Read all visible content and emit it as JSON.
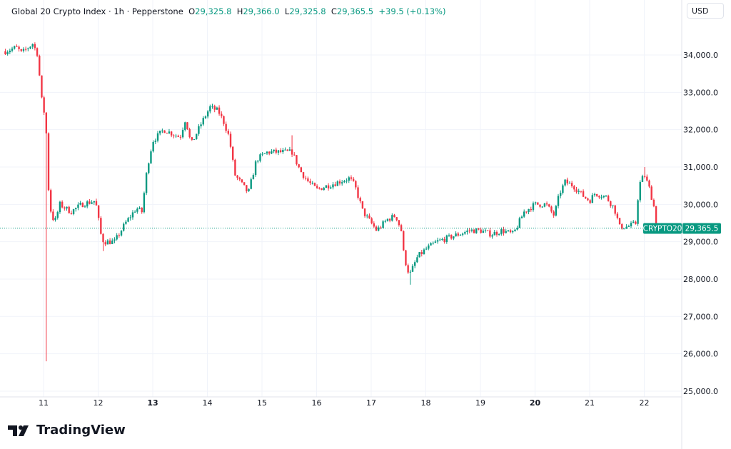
{
  "header": {
    "symbol": "Global 20 Crypto Index · 1h · Pepperstone",
    "o_label": "O",
    "o": "29,325.8",
    "h_label": "H",
    "h": "29,366.0",
    "l_label": "L",
    "l": "29,325.8",
    "c_label": "C",
    "c": "29,365.5",
    "change": "+39.5 (+0.13%)"
  },
  "currency": "USD",
  "logo_text": "TradingView",
  "colors": {
    "up": "#089981",
    "down": "#f23645",
    "grid": "#f0f3fa"
  },
  "chart_data": {
    "type": "candlestick",
    "timeframe": "1h",
    "ylim": [
      24900,
      34700
    ],
    "yticks": [
      25000,
      26000,
      27000,
      28000,
      29000,
      30000,
      31000,
      32000,
      33000,
      34000
    ],
    "ytick_labels": [
      "25,000.0",
      "26,000.0",
      "27,000.0",
      "28,000.0",
      "29,000.0",
      "30,000.0",
      "31,000.0",
      "32,000.0",
      "33,000.0",
      "34,000.0"
    ],
    "xlim": [
      10.3,
      22.7
    ],
    "xticks": [
      11,
      12,
      13,
      14,
      15,
      16,
      17,
      18,
      19,
      20,
      21,
      22
    ],
    "xtick_labels": [
      "11",
      "12",
      "13",
      "14",
      "15",
      "16",
      "17",
      "18",
      "19",
      "20",
      "21",
      "22"
    ],
    "bold_xticks": [
      "13",
      "20"
    ],
    "last_price": 29365.5,
    "last_price_label": "29,365.5",
    "last_symbol": "CRYPTO20",
    "close_path": [
      [
        10.3,
        34100
      ],
      [
        10.5,
        34200
      ],
      [
        10.6,
        34050
      ],
      [
        10.8,
        34300
      ],
      [
        10.9,
        34000
      ],
      [
        10.95,
        32900
      ],
      [
        11.0,
        32600
      ],
      [
        11.05,
        31900
      ],
      [
        11.07,
        31500
      ],
      [
        11.1,
        30000
      ],
      [
        11.2,
        29500
      ],
      [
        11.3,
        30000
      ],
      [
        11.5,
        29800
      ],
      [
        11.7,
        30000
      ],
      [
        11.95,
        30100
      ],
      [
        12.05,
        29200
      ],
      [
        12.1,
        29000
      ],
      [
        12.3,
        29000
      ],
      [
        12.5,
        29500
      ],
      [
        12.7,
        29900
      ],
      [
        12.8,
        29800
      ],
      [
        12.9,
        31000
      ],
      [
        13.0,
        31700
      ],
      [
        13.2,
        32000
      ],
      [
        13.5,
        31800
      ],
      [
        13.6,
        32300
      ],
      [
        13.7,
        31600
      ],
      [
        13.9,
        32200
      ],
      [
        14.05,
        32600
      ],
      [
        14.2,
        32500
      ],
      [
        14.3,
        32200
      ],
      [
        14.4,
        31800
      ],
      [
        14.5,
        30800
      ],
      [
        14.6,
        30600
      ],
      [
        14.75,
        30300
      ],
      [
        14.9,
        31200
      ],
      [
        15.1,
        31400
      ],
      [
        15.4,
        31400
      ],
      [
        15.55,
        31400
      ],
      [
        15.7,
        30900
      ],
      [
        15.85,
        30600
      ],
      [
        16.0,
        30400
      ],
      [
        16.2,
        30500
      ],
      [
        16.4,
        30600
      ],
      [
        16.6,
        30700
      ],
      [
        16.7,
        30500
      ],
      [
        16.85,
        29800
      ],
      [
        16.95,
        29600
      ],
      [
        17.1,
        29300
      ],
      [
        17.3,
        29600
      ],
      [
        17.45,
        29700
      ],
      [
        17.55,
        29300
      ],
      [
        17.6,
        28600
      ],
      [
        17.7,
        28100
      ],
      [
        17.85,
        28600
      ],
      [
        18.0,
        28800
      ],
      [
        18.2,
        29000
      ],
      [
        18.4,
        29100
      ],
      [
        18.6,
        29200
      ],
      [
        18.8,
        29300
      ],
      [
        19.0,
        29300
      ],
      [
        19.2,
        29200
      ],
      [
        19.4,
        29300
      ],
      [
        19.6,
        29200
      ],
      [
        19.7,
        29500
      ],
      [
        19.8,
        29800
      ],
      [
        20.0,
        30000
      ],
      [
        20.2,
        30000
      ],
      [
        20.35,
        29700
      ],
      [
        20.45,
        30300
      ],
      [
        20.55,
        30600
      ],
      [
        20.7,
        30500
      ],
      [
        20.9,
        30200
      ],
      [
        21.0,
        30100
      ],
      [
        21.1,
        30300
      ],
      [
        21.3,
        30200
      ],
      [
        21.45,
        29900
      ],
      [
        21.55,
        29400
      ],
      [
        21.7,
        29400
      ],
      [
        21.85,
        29500
      ],
      [
        21.9,
        30500
      ],
      [
        22.0,
        30800
      ],
      [
        22.1,
        30400
      ],
      [
        22.2,
        29800
      ],
      [
        22.25,
        29365.5
      ]
    ],
    "notable_wicks": [
      {
        "day": 11.07,
        "low": 25800
      },
      {
        "day": 15.55,
        "high": 31850
      },
      {
        "day": 22.0,
        "high": 31000
      },
      {
        "day": 17.72,
        "low": 27850
      },
      {
        "day": 12.08,
        "low": 28750
      }
    ]
  }
}
